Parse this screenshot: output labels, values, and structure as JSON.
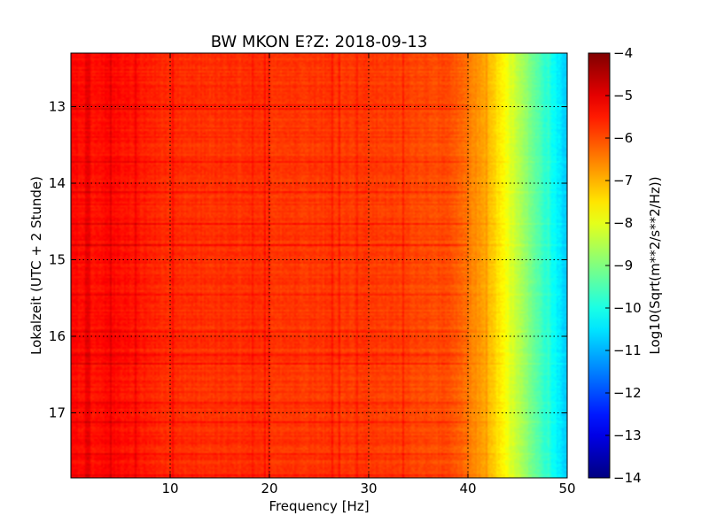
{
  "chart_data": {
    "type": "heatmap",
    "title": "BW MKON E?Z: 2018-09-13",
    "xlabel": "Frequency [Hz]",
    "ylabel": "Lokalzeit (UTC + 2 Stunde)",
    "xlim": [
      0,
      50
    ],
    "ylim": [
      12.3,
      17.85
    ],
    "x_ticks": [
      10,
      20,
      30,
      40,
      50
    ],
    "y_ticks": [
      13,
      14,
      15,
      16,
      17
    ],
    "y_axis_inverted": true,
    "grid": "dotted",
    "colormap": "jet",
    "colorbar": {
      "label": "Log10(Sqrt(m**2/s**2/Hz))",
      "range": [
        -14,
        -4
      ],
      "ticks": [
        -4,
        -5,
        -6,
        -7,
        -8,
        -9,
        -10,
        -11,
        -12,
        -13,
        -14
      ]
    },
    "frequency_profile": {
      "frequency_hz": [
        0,
        2,
        4,
        10,
        20,
        30,
        38,
        40,
        42,
        44,
        46,
        48,
        50
      ],
      "log10_amplitude": [
        -5.3,
        -5.4,
        -5.3,
        -5.7,
        -5.75,
        -5.8,
        -6.0,
        -6.4,
        -7.0,
        -7.9,
        -8.9,
        -9.9,
        -10.8
      ]
    }
  }
}
